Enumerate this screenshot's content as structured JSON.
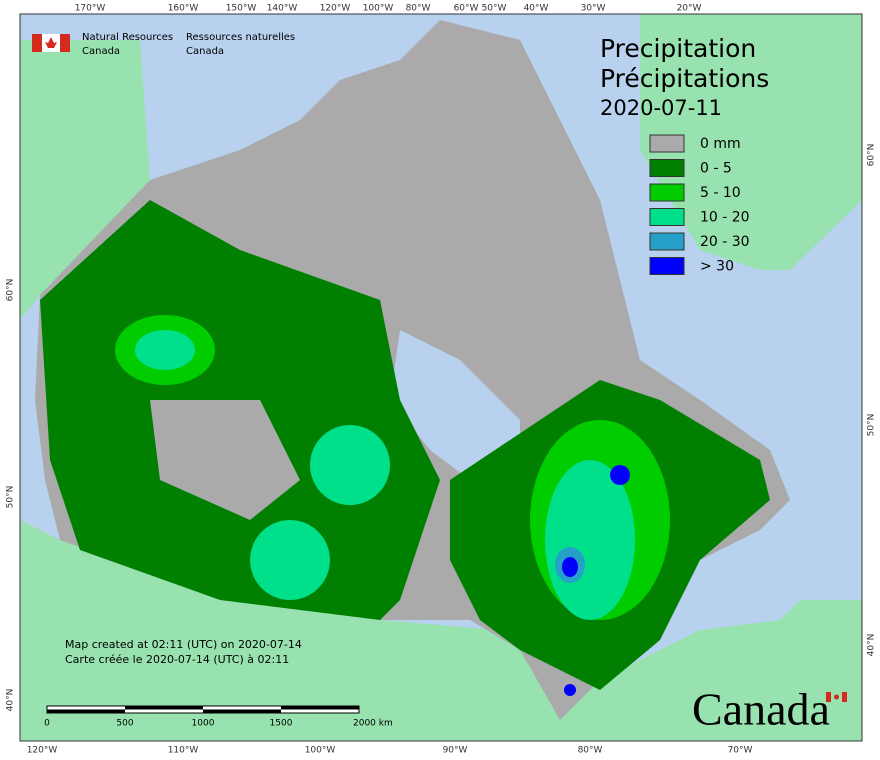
{
  "logo": {
    "en": [
      "Natural Resources",
      "Canada"
    ],
    "fr": [
      "Ressources naturelles",
      "Canada"
    ]
  },
  "title": [
    "Precipitation",
    "Précipitations",
    "2020-07-11"
  ],
  "legend": [
    {
      "label": "0 mm",
      "color": "#aaaaaa"
    },
    {
      "label": "0 - 5",
      "color": "#007f00"
    },
    {
      "label": "5 - 10",
      "color": "#00cc00"
    },
    {
      "label": "10 - 20",
      "color": "#00e08a"
    },
    {
      "label": "20 - 30",
      "color": "#26a0c8"
    },
    {
      "label": "> 30",
      "color": "#0000ff"
    }
  ],
  "axes": {
    "top": [
      "170°W",
      "160°W",
      "150°W",
      "140°W",
      "120°W",
      "100°W",
      "80°W",
      "60°W",
      "50°W",
      "40°W",
      "30°W",
      "20°W"
    ],
    "bottom": [
      "120°W",
      "110°W",
      "100°W",
      "90°W",
      "80°W",
      "70°W"
    ],
    "left": [
      "60°N",
      "50°N",
      "40°N"
    ],
    "right": [
      "60°N",
      "50°N",
      "40°N"
    ]
  },
  "credits": [
    "Map created at 02:11 (UTC) on 2020-07-14",
    "Carte créée le 2020-07-14 (UTC) à 02:11"
  ],
  "scale": [
    "0",
    "500",
    "1000",
    "1500",
    "2000 km"
  ],
  "wordmark": "Canada"
}
